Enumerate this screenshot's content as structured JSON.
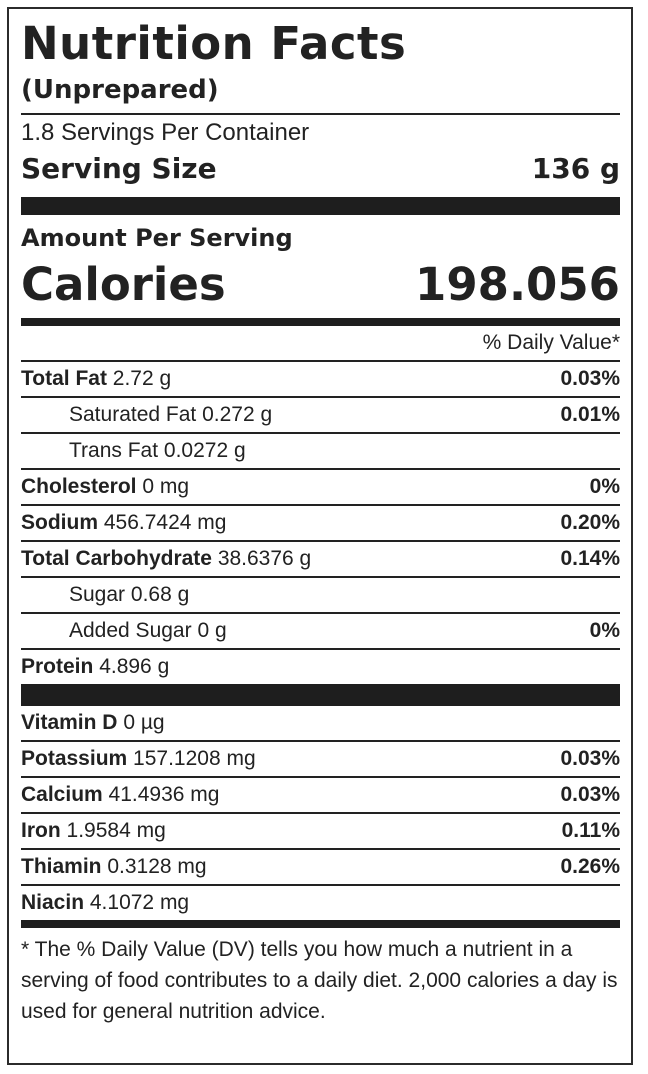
{
  "title": "Nutrition Facts",
  "subtitle": "(Unprepared)",
  "servings_per_container": "1.8 Servings Per Container",
  "serving_size": {
    "label": "Serving Size",
    "value": "136 g"
  },
  "amount_per_serving": "Amount Per Serving",
  "calories": {
    "label": "Calories",
    "value": "198.056"
  },
  "daily_value_header": "% Daily Value*",
  "nutrients": [
    {
      "name": "Total Fat",
      "amount": "2.72 g",
      "dv": "0.03%"
    },
    {
      "name": "Saturated Fat",
      "amount": "0.272 g",
      "dv": "0.01%"
    },
    {
      "name": "Trans Fat",
      "amount": "0.0272 g",
      "dv": ""
    },
    {
      "name": "Cholesterol",
      "amount": "0 mg",
      "dv": "0%"
    },
    {
      "name": "Sodium",
      "amount": "456.7424 mg",
      "dv": "0.20%"
    },
    {
      "name": "Total Carbohydrate",
      "amount": "38.6376 g",
      "dv": "0.14%"
    },
    {
      "name": "Sugar",
      "amount": "0.68 g",
      "dv": ""
    },
    {
      "name": "Added Sugar",
      "amount": "0 g",
      "dv": "0%"
    },
    {
      "name": "Protein",
      "amount": "4.896 g",
      "dv": ""
    }
  ],
  "vitamins": [
    {
      "name": "Vitamin D",
      "amount": "0 µg",
      "dv": ""
    },
    {
      "name": "Potassium",
      "amount": "157.1208 mg",
      "dv": "0.03%"
    },
    {
      "name": "Calcium",
      "amount": "41.4936 mg",
      "dv": "0.03%"
    },
    {
      "name": "Iron",
      "amount": "1.9584 mg",
      "dv": "0.11%"
    },
    {
      "name": "Thiamin",
      "amount": "0.3128 mg",
      "dv": "0.26%"
    },
    {
      "name": "Niacin",
      "amount": "4.1072 mg",
      "dv": ""
    }
  ],
  "footnote": "* The % Daily Value (DV) tells you how much a nutrient in a serving of food contributes to a daily diet. 2,000 calories a day is used for general nutrition advice."
}
